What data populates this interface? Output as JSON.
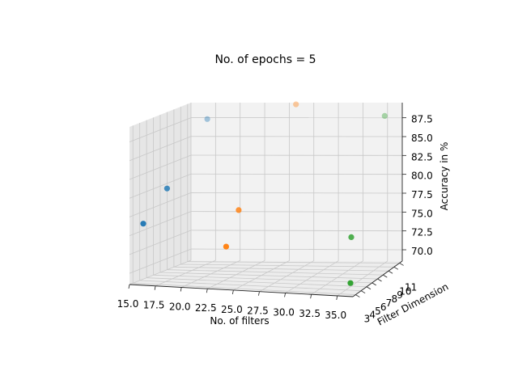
{
  "chart_data": {
    "type": "scatter",
    "projection": "3d",
    "title": "No. of epochs = 5",
    "xlabel": "No. of filters",
    "ylabel": "Filter Dimension",
    "zlabel": "Accuracy in %",
    "xlim": [
      15,
      36.5
    ],
    "ylim": [
      2.5,
      11.5
    ],
    "zlim": [
      68.5,
      89.5
    ],
    "x_ticks": [
      "15.0",
      "17.5",
      "20.0",
      "22.5",
      "25.0",
      "27.5",
      "30.0",
      "32.5",
      "35.0"
    ],
    "x_tick_values": [
      15,
      17.5,
      20,
      22.5,
      25,
      27.5,
      30,
      32.5,
      35
    ],
    "y_ticks": [
      "3",
      "4",
      "5",
      "6",
      "7",
      "8",
      "9",
      "10",
      "11"
    ],
    "y_tick_values": [
      3,
      4,
      5,
      6,
      7,
      8,
      9,
      10,
      11
    ],
    "z_ticks": [
      "70.0",
      "72.5",
      "75.0",
      "77.5",
      "80.0",
      "82.5",
      "85.0",
      "87.5"
    ],
    "z_tick_values": [
      70,
      72.5,
      75,
      77.5,
      80,
      82.5,
      85,
      87.5
    ],
    "grid": true,
    "series": [
      {
        "color": "#1f77b4",
        "points": [
          {
            "x": 16,
            "y": 3,
            "z": 76.5
          },
          {
            "x": 17,
            "y": 5,
            "z": 80.5
          },
          {
            "x": 17,
            "y": 11,
            "z": 87.5
          }
        ]
      },
      {
        "color": "#ff7f0e",
        "points": [
          {
            "x": 24,
            "y": 3,
            "z": 74.0
          },
          {
            "x": 24,
            "y": 5,
            "z": 78.0
          },
          {
            "x": 26,
            "y": 11,
            "z": 89.5
          }
        ]
      },
      {
        "color": "#2ca02c",
        "points": [
          {
            "x": 36,
            "y": 3,
            "z": 70.0
          },
          {
            "x": 35,
            "y": 5,
            "z": 75.0
          },
          {
            "x": 35,
            "y": 11,
            "z": 88.0
          }
        ]
      }
    ]
  }
}
